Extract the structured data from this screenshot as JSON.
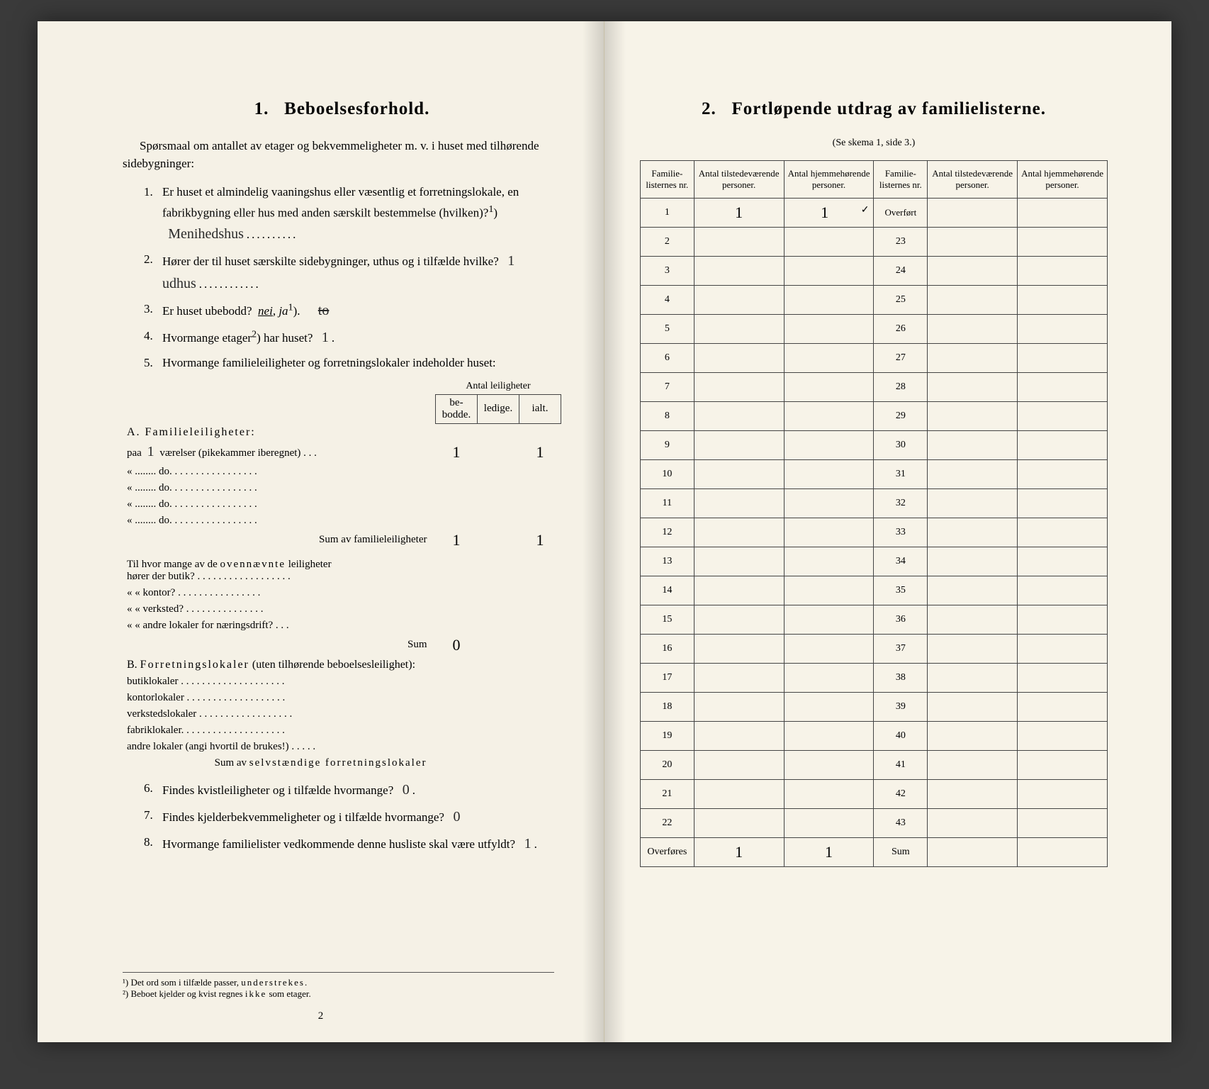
{
  "colors": {
    "paper": "#f5f1e6",
    "paper_right": "#f7f3e8",
    "ink": "#222222",
    "rule": "#444444",
    "background": "#3a3a3a"
  },
  "left": {
    "title_num": "1.",
    "title": "Beboelsesforhold.",
    "intro": "Spørsmaal om antallet av etager og bekvemmeligheter m. v. i huset med tilhørende sidebygninger:",
    "q1": {
      "num": "1.",
      "text_a": "Er huset et almindelig vaaningshus eller væsentlig et forretningslokale, en fabrikbygning eller hus med anden særskilt bestemmelse (hvilken)?",
      "sup": "1",
      "answer": "Menihedshus"
    },
    "q2": {
      "num": "2.",
      "text": "Hører der til huset særskilte sidebygninger, uthus og i tilfælde hvilke?",
      "answer": "1 udhus"
    },
    "q3": {
      "num": "3.",
      "text": "Er huset ubebodd?",
      "options": "nei, ja",
      "sup": "1",
      "strike": "to"
    },
    "q4": {
      "num": "4.",
      "text": "Hvormange etager",
      "sup": "2",
      "text_b": ") har huset?",
      "answer": "1"
    },
    "q5": {
      "num": "5.",
      "text": "Hvormange familieleiligheter og forretningslokaler indeholder huset:"
    },
    "leilig_header": "Antal leiligheter",
    "leilig_cols": [
      "be-\nbodde.",
      "ledige.",
      "ialt."
    ],
    "secA_title": "A. Familieleiligheter:",
    "secA_rows": [
      {
        "label": "paa 1 værelser (pikekammer iberegnet) . . .",
        "hand_num": "1",
        "bebodde": "1",
        "ledige": "",
        "ialt": "1"
      },
      {
        "label": "«   ........   do.   . . . . . . . . . . . . . . . .",
        "bebodde": "",
        "ledige": "",
        "ialt": ""
      },
      {
        "label": "«   ........   do.   . . . . . . . . . . . . . . . .",
        "bebodde": "",
        "ledige": "",
        "ialt": ""
      },
      {
        "label": "«   ........   do.   . . . . . . . . . . . . . . . .",
        "bebodde": "",
        "ledige": "",
        "ialt": ""
      },
      {
        "label": "«   ........   do.   . . . . . . . . . . . . . . . .",
        "bebodde": "",
        "ledige": "",
        "ialt": ""
      }
    ],
    "secA_sum_label": "Sum av familieleiligheter",
    "secA_sum": {
      "bebodde": "1",
      "ledige": "",
      "ialt": "1"
    },
    "secA_sub_intro": "Til hvor mange av de ovennævnte leiligheter hører der butik? . . . . . . . . . . . . . . . . . .",
    "secA_sub_rows": [
      "«    « kontor? . . . . . . . . . . . . . . . .",
      "«    « verksted? . . . . . . . . . . . . . . .",
      "«    « andre lokaler for næringsdrift? . . ."
    ],
    "secA_sub_sum_label": "Sum",
    "secA_sub_sum_val": "0",
    "secB_title": "B. Forretningslokaler (uten tilhørende beboelsesleilighet):",
    "secB_rows": [
      "butiklokaler . . . . . . . . . . . . . . . . . . . .",
      "kontorlokaler  . . . . . . . . . . . . . . . . . . .",
      "verkstedslokaler . . . . . . . . . . . . . . . . . .",
      "fabriklokaler. . . . . . . . . . . . . . . . . . . .",
      "andre lokaler (angi hvortil de brukes!) . . . . ."
    ],
    "secB_sum_label": "Sum av selvstændige forretningslokaler",
    "q6": {
      "num": "6.",
      "text": "Findes kvistleiligheter og i tilfælde hvormange?",
      "answer": "0"
    },
    "q7": {
      "num": "7.",
      "text": "Findes kjelderbekvemmeligheter og i tilfælde hvormange?",
      "answer": "0"
    },
    "q8": {
      "num": "8.",
      "text": "Hvormange familielister vedkommende denne husliste skal være utfyldt?",
      "answer": "1"
    },
    "footnote1": "¹) Det ord som i tilfælde passer, understrekes.",
    "footnote2": "²) Beboet kjelder og kvist regnes ikke som etager.",
    "page_num": "2"
  },
  "right": {
    "title_num": "2.",
    "title": "Fortløpende utdrag av familielisterne.",
    "subtitle": "(Se skema 1, side 3.)",
    "columns": [
      "Familie-\nlisternes\nnr.",
      "Antal\ntilstedeværende\npersoner.",
      "Antal\nhjemmehørende\npersoner.",
      "Familie-\nlisternes\nnr.",
      "Antal\ntilstedeværende\npersoner.",
      "Antal\nhjemmehørende\npersoner."
    ],
    "rows_left_nr": [
      "1",
      "2",
      "3",
      "4",
      "5",
      "6",
      "7",
      "8",
      "9",
      "10",
      "11",
      "12",
      "13",
      "14",
      "15",
      "16",
      "17",
      "18",
      "19",
      "20",
      "21",
      "22"
    ],
    "rows_right_nr": [
      "Overført",
      "23",
      "24",
      "25",
      "26",
      "27",
      "28",
      "29",
      "30",
      "31",
      "32",
      "33",
      "34",
      "35",
      "36",
      "37",
      "38",
      "39",
      "40",
      "41",
      "42",
      "43"
    ],
    "row1_tilstede": "1",
    "row1_hjemme": "1",
    "row1_tick": "✓",
    "footer_left": "Overføres",
    "footer_right": "Sum",
    "footer_tilstede": "1",
    "footer_hjemme": "1"
  }
}
